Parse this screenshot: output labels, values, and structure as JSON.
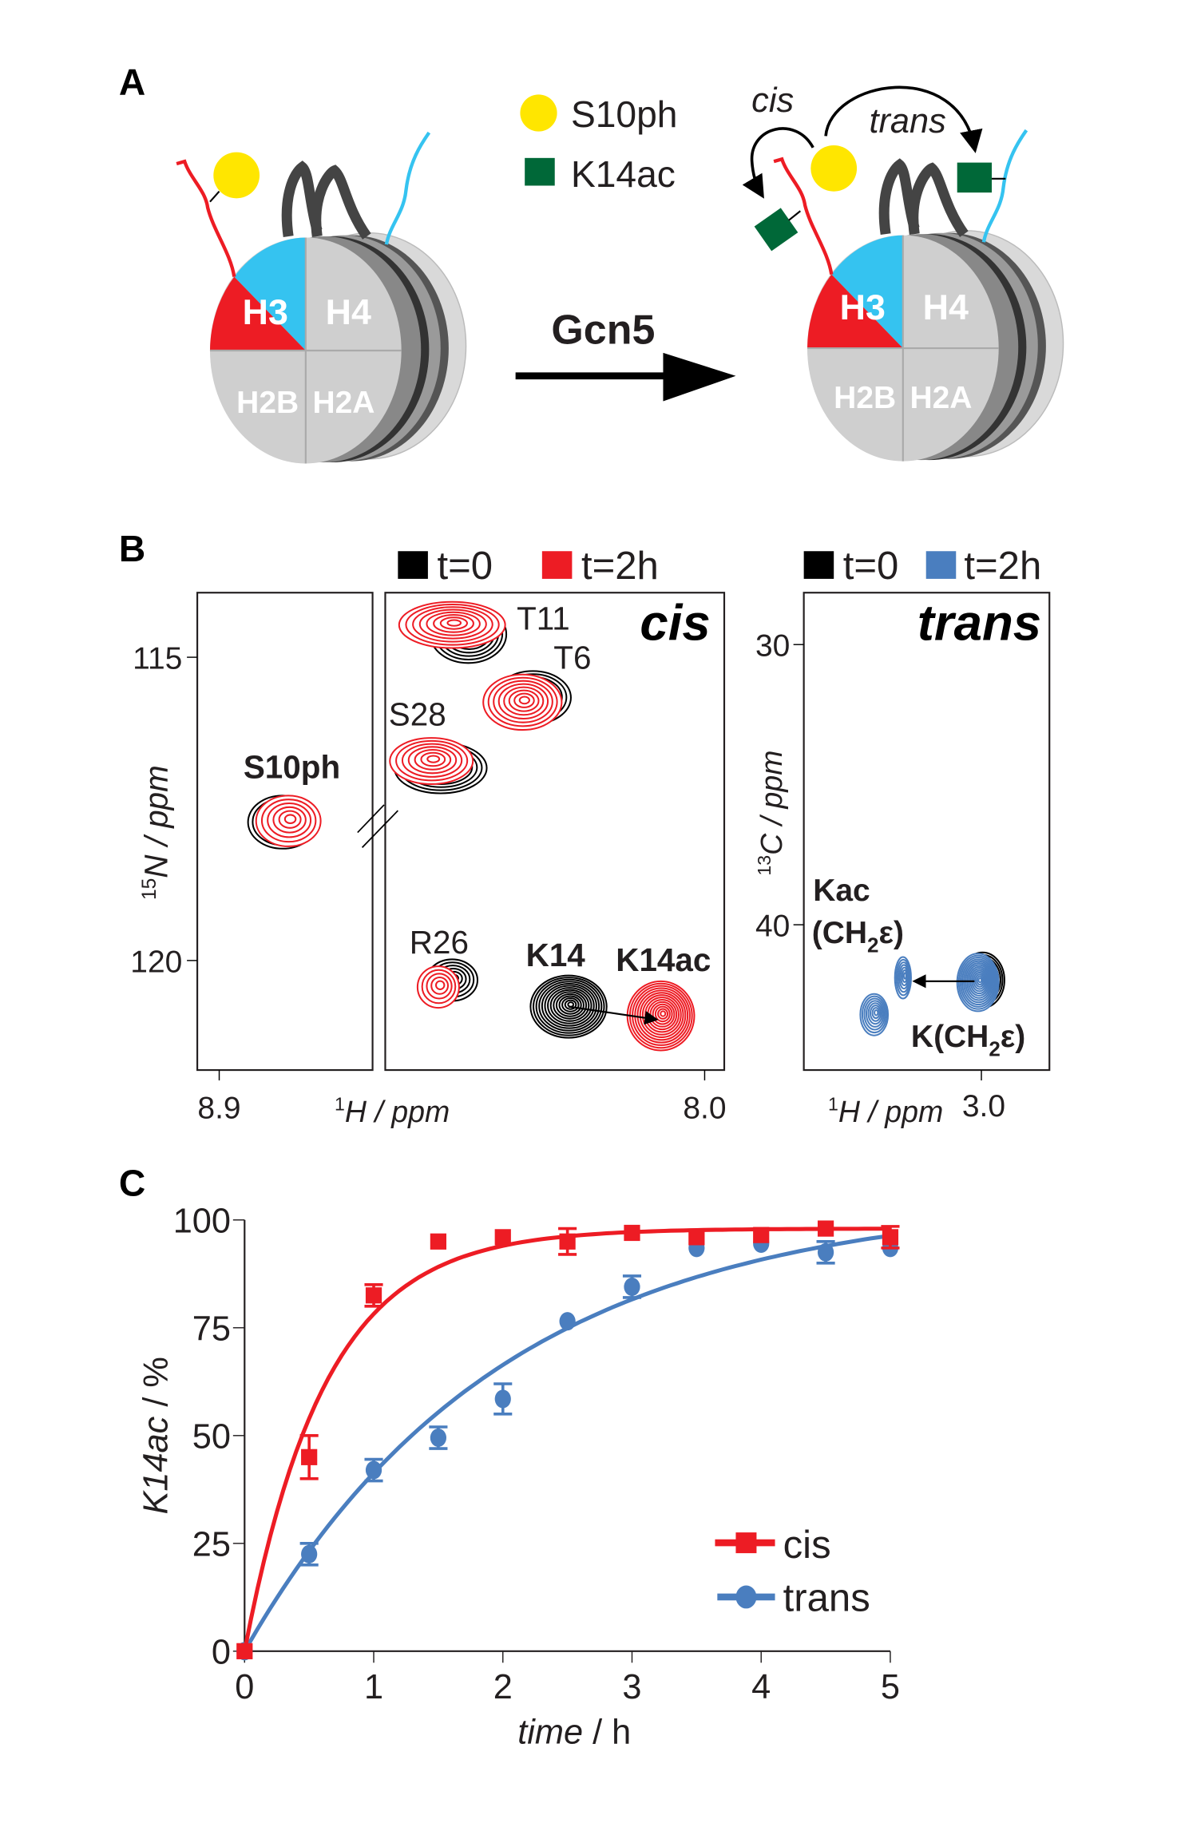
{
  "panel_a": {
    "label": "A",
    "legend": [
      {
        "label": "S10ph",
        "color": "#ffe600"
      },
      {
        "label": "K14ac",
        "color": "#006838"
      }
    ],
    "histones": [
      "H3",
      "H4",
      "H2B",
      "H2A"
    ],
    "enzyme": "Gcn5",
    "arrow_cis": "cis",
    "arrow_trans": "trans"
  },
  "panel_b": {
    "label": "B",
    "legend_left": [
      {
        "label": "t=0",
        "color": "#000000"
      },
      {
        "label": "t=2h",
        "color": "#ed1c24"
      }
    ],
    "legend_right": [
      {
        "label": "t=0",
        "color": "#000000"
      },
      {
        "label": "t=2h",
        "color": "#4a7ebf"
      }
    ],
    "cis_title": "cis",
    "trans_title": "trans",
    "n_axis_label": "N / ppm",
    "n_axis_sup": "15",
    "c_axis_label": "C / ppm",
    "c_axis_sup": "13",
    "h_axis_label": "H / ppm",
    "h_axis_sup": "1",
    "n_ticks": [
      "115",
      "120"
    ],
    "c_ticks": [
      "30",
      "40"
    ],
    "h_ticks_left": [
      "8.9",
      "8.0"
    ],
    "h_tick_right": "3.0",
    "peaks": {
      "s10ph": "S10ph",
      "t11": "T11",
      "t6": "T6",
      "s28": "S28",
      "r26": "R26",
      "k14": "K14",
      "k14ac": "K14ac"
    },
    "kac_label": "Kac",
    "kac_sub": "(CH",
    "sub2": "2",
    "eps": "ε)",
    "k_label": "K(CH"
  },
  "chart_data": {
    "type": "scatter",
    "label": "C",
    "xlabel": "time",
    "xunit": " / h",
    "ylabel": "K14ac",
    "yunit": " / %",
    "xlim": [
      0,
      5
    ],
    "ylim": [
      0,
      100
    ],
    "xticks": [
      "0",
      "1",
      "2",
      "3",
      "4",
      "5"
    ],
    "yticks": [
      "0",
      "25",
      "50",
      "75",
      "100"
    ],
    "legend_position": "bottom-right",
    "series": [
      {
        "name": "cis",
        "color": "#ed1c24",
        "marker": "square",
        "x": [
          0,
          0.5,
          1,
          1.5,
          2,
          2.5,
          3,
          3.5,
          4,
          4.5,
          5
        ],
        "y": [
          0,
          45,
          82.5,
          95,
          96,
          95,
          97,
          96,
          96.5,
          98,
          96
        ],
        "err": [
          0,
          5,
          2.5,
          0,
          1,
          3,
          1,
          1,
          1,
          1,
          2.5
        ],
        "fit": {
          "A": 98,
          "k": 1.6
        }
      },
      {
        "name": "trans",
        "color": "#4a7ebf",
        "marker": "circle",
        "x": [
          0,
          0.5,
          1,
          1.5,
          2,
          2.5,
          3,
          3.5,
          4,
          4.5,
          5
        ],
        "y": [
          0,
          22.5,
          42,
          49.5,
          58.5,
          76.5,
          84.5,
          93.5,
          94.5,
          92.5,
          93.5
        ],
        "err": [
          0,
          2.5,
          2.5,
          2.5,
          3.5,
          0,
          2.5,
          1,
          1,
          2.5,
          1
        ],
        "fit": {
          "A": 105,
          "k": 0.5
        }
      }
    ]
  }
}
